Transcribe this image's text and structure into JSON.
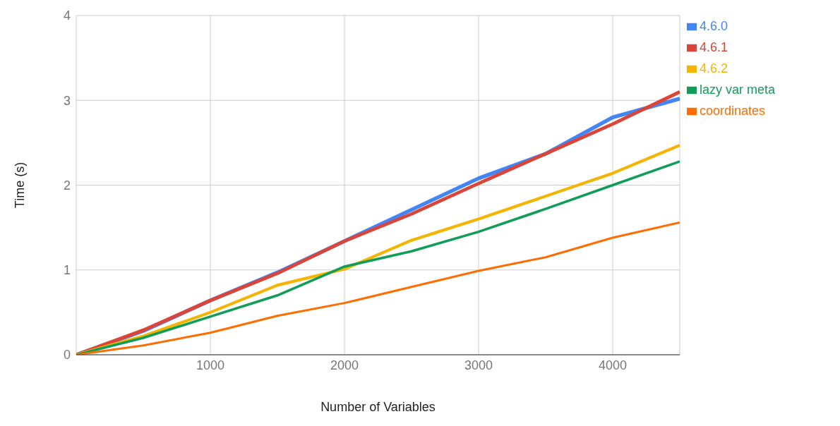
{
  "chart_data": {
    "type": "line",
    "xlabel": "Number of Variables",
    "ylabel": "Time (s)",
    "x": [
      0,
      500,
      1000,
      1500,
      2000,
      2500,
      3000,
      3500,
      4000,
      4500
    ],
    "series": [
      {
        "name": "4.6.0",
        "color": "#4285f4",
        "values": [
          0,
          0.28,
          0.64,
          0.97,
          1.34,
          1.71,
          2.08,
          2.37,
          2.8,
          3.02
        ]
      },
      {
        "name": "4.6.1",
        "color": "#db4437",
        "values": [
          0,
          0.29,
          0.64,
          0.96,
          1.34,
          1.66,
          2.02,
          2.37,
          2.72,
          3.1
        ]
      },
      {
        "name": "4.6.2",
        "color": "#f4b400",
        "values": [
          0,
          0.22,
          0.5,
          0.82,
          1.01,
          1.35,
          1.6,
          1.87,
          2.14,
          2.47
        ]
      },
      {
        "name": "lazy var meta",
        "color": "#0f9d58",
        "values": [
          0,
          0.2,
          0.45,
          0.7,
          1.04,
          1.22,
          1.45,
          1.72,
          2,
          2.28
        ]
      },
      {
        "name": "coordinates",
        "color": "#ff6d00",
        "values": [
          0,
          0.11,
          0.26,
          0.46,
          0.61,
          0.8,
          0.99,
          1.15,
          1.38,
          1.56
        ]
      }
    ],
    "xlim": [
      0,
      4500
    ],
    "xticks": [
      1000,
      2000,
      3000,
      4000
    ],
    "ylim": [
      0,
      4
    ],
    "yticks": [
      0,
      1,
      2,
      3,
      4
    ],
    "grid": true,
    "legend": "top right",
    "marker": "none",
    "line_style": "solid"
  }
}
